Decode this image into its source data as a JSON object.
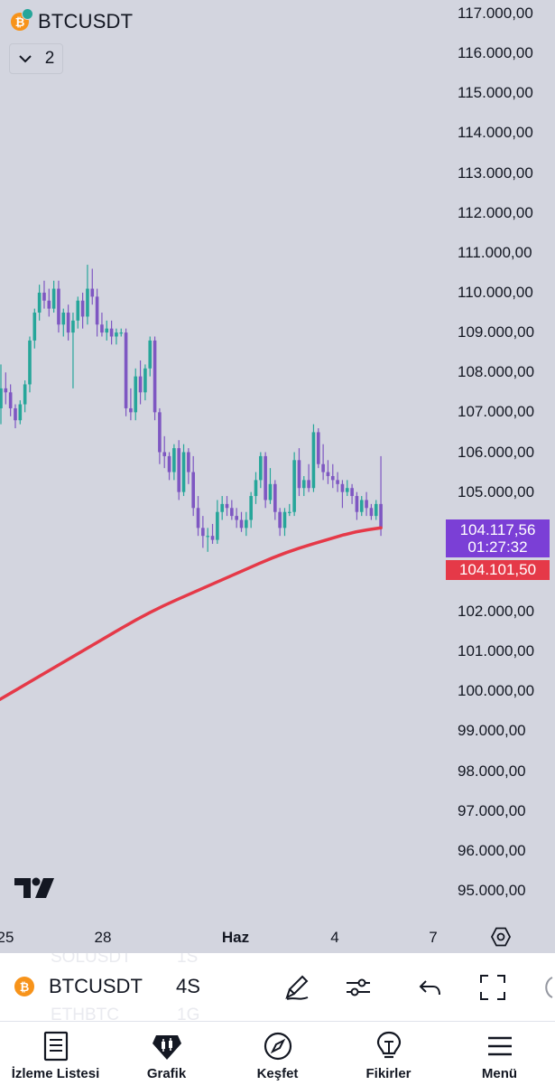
{
  "header": {
    "symbol": "BTCUSDT",
    "coin_glyph": "₿",
    "collapse_count": "2",
    "icon": "chevron-down-icon"
  },
  "colors": {
    "background": "#d3d5df",
    "up": "#26a69a",
    "down": "#7e57c2",
    "ma_line": "#e53948",
    "last_price_bg": "#7b3fd6"
  },
  "price_axis": {
    "ticks": [
      "117.000,00",
      "116.000,00",
      "115.000,00",
      "114.000,00",
      "113.000,00",
      "112.000,00",
      "111.000,00",
      "110.000,00",
      "109.000,00",
      "108.000,00",
      "107.000,00",
      "106.000,00",
      "105.000,00",
      "102.000,00",
      "101.000,00",
      "100.000,00",
      "99.000,00",
      "98.000,00",
      "97.000,00",
      "96.000,00",
      "95.000,00"
    ],
    "last_price": "104.117,56",
    "countdown": "01:27:32",
    "ma_value": "104.101,50"
  },
  "time_axis": {
    "labels": [
      "25",
      "28",
      "Haz",
      "4",
      "7"
    ]
  },
  "chart_data": {
    "type": "candlestick",
    "symbol": "BTCUSDT",
    "interval": "4S",
    "ylim": [
      94700,
      117300
    ],
    "candles": [
      {
        "o": 107100,
        "h": 108200,
        "l": 106700,
        "c": 107600
      },
      {
        "o": 107600,
        "h": 108000,
        "l": 107200,
        "c": 107500
      },
      {
        "o": 107500,
        "h": 107700,
        "l": 106900,
        "c": 107100
      },
      {
        "o": 107100,
        "h": 107200,
        "l": 106600,
        "c": 106800
      },
      {
        "o": 106800,
        "h": 107300,
        "l": 106700,
        "c": 107200
      },
      {
        "o": 107200,
        "h": 107800,
        "l": 107000,
        "c": 107700
      },
      {
        "o": 107700,
        "h": 108900,
        "l": 107500,
        "c": 108800
      },
      {
        "o": 108800,
        "h": 109600,
        "l": 108600,
        "c": 109500
      },
      {
        "o": 109500,
        "h": 110200,
        "l": 109300,
        "c": 110000
      },
      {
        "o": 110000,
        "h": 110300,
        "l": 109600,
        "c": 109800
      },
      {
        "o": 109800,
        "h": 110100,
        "l": 109400,
        "c": 109600
      },
      {
        "o": 109600,
        "h": 110300,
        "l": 109500,
        "c": 110100
      },
      {
        "o": 110100,
        "h": 110300,
        "l": 109000,
        "c": 109200
      },
      {
        "o": 109200,
        "h": 109600,
        "l": 108900,
        "c": 109500
      },
      {
        "o": 109500,
        "h": 109700,
        "l": 108800,
        "c": 109000
      },
      {
        "o": 109000,
        "h": 109500,
        "l": 107600,
        "c": 109300
      },
      {
        "o": 109300,
        "h": 109900,
        "l": 109100,
        "c": 109800
      },
      {
        "o": 109800,
        "h": 110000,
        "l": 109100,
        "c": 109400
      },
      {
        "o": 109400,
        "h": 110700,
        "l": 109200,
        "c": 110100
      },
      {
        "o": 110100,
        "h": 110600,
        "l": 109700,
        "c": 109900
      },
      {
        "o": 109900,
        "h": 110100,
        "l": 108900,
        "c": 109200
      },
      {
        "o": 109200,
        "h": 109500,
        "l": 108900,
        "c": 109000
      },
      {
        "o": 109000,
        "h": 109300,
        "l": 108800,
        "c": 109100
      },
      {
        "o": 109100,
        "h": 109300,
        "l": 108700,
        "c": 108900
      },
      {
        "o": 108900,
        "h": 109100,
        "l": 108700,
        "c": 109000
      },
      {
        "o": 109000,
        "h": 109100,
        "l": 108900,
        "c": 109000
      },
      {
        "o": 109000,
        "h": 109100,
        "l": 106900,
        "c": 107100
      },
      {
        "o": 107100,
        "h": 107600,
        "l": 106800,
        "c": 107000
      },
      {
        "o": 107000,
        "h": 108100,
        "l": 106800,
        "c": 107900
      },
      {
        "o": 107900,
        "h": 108300,
        "l": 107200,
        "c": 107500
      },
      {
        "o": 107500,
        "h": 108200,
        "l": 107300,
        "c": 108100
      },
      {
        "o": 108100,
        "h": 108900,
        "l": 107900,
        "c": 108800
      },
      {
        "o": 108800,
        "h": 108900,
        "l": 106800,
        "c": 107000
      },
      {
        "o": 107000,
        "h": 107100,
        "l": 105700,
        "c": 106000
      },
      {
        "o": 106000,
        "h": 106400,
        "l": 105600,
        "c": 105900
      },
      {
        "o": 105900,
        "h": 106000,
        "l": 105300,
        "c": 105500
      },
      {
        "o": 105500,
        "h": 106200,
        "l": 105300,
        "c": 106100
      },
      {
        "o": 106100,
        "h": 106300,
        "l": 104800,
        "c": 105000
      },
      {
        "o": 105000,
        "h": 106200,
        "l": 104900,
        "c": 106000
      },
      {
        "o": 106000,
        "h": 106100,
        "l": 105200,
        "c": 105500
      },
      {
        "o": 105500,
        "h": 105900,
        "l": 104400,
        "c": 104600
      },
      {
        "o": 104600,
        "h": 104900,
        "l": 103900,
        "c": 104100
      },
      {
        "o": 104100,
        "h": 104400,
        "l": 103600,
        "c": 103900
      },
      {
        "o": 103900,
        "h": 104100,
        "l": 103500,
        "c": 103900
      },
      {
        "o": 103900,
        "h": 104200,
        "l": 103700,
        "c": 103800
      },
      {
        "o": 103800,
        "h": 104800,
        "l": 103700,
        "c": 104500
      },
      {
        "o": 104500,
        "h": 104900,
        "l": 104300,
        "c": 104700
      },
      {
        "o": 104700,
        "h": 104900,
        "l": 104400,
        "c": 104600
      },
      {
        "o": 104600,
        "h": 104800,
        "l": 104300,
        "c": 104400
      },
      {
        "o": 104400,
        "h": 104600,
        "l": 104100,
        "c": 104300
      },
      {
        "o": 104300,
        "h": 104500,
        "l": 104000,
        "c": 104100
      },
      {
        "o": 104100,
        "h": 104500,
        "l": 103900,
        "c": 104300
      },
      {
        "o": 104300,
        "h": 105000,
        "l": 104100,
        "c": 104900
      },
      {
        "o": 104900,
        "h": 105500,
        "l": 104700,
        "c": 105300
      },
      {
        "o": 105300,
        "h": 106000,
        "l": 105100,
        "c": 105900
      },
      {
        "o": 105900,
        "h": 106000,
        "l": 104600,
        "c": 104800
      },
      {
        "o": 104800,
        "h": 105600,
        "l": 104700,
        "c": 105200
      },
      {
        "o": 105200,
        "h": 105300,
        "l": 104300,
        "c": 104500
      },
      {
        "o": 104500,
        "h": 104600,
        "l": 103900,
        "c": 104100
      },
      {
        "o": 104100,
        "h": 104600,
        "l": 103900,
        "c": 104500
      },
      {
        "o": 104500,
        "h": 104700,
        "l": 104400,
        "c": 104500
      },
      {
        "o": 104500,
        "h": 106000,
        "l": 104400,
        "c": 105800
      },
      {
        "o": 105800,
        "h": 106100,
        "l": 104900,
        "c": 105100
      },
      {
        "o": 105100,
        "h": 105400,
        "l": 104900,
        "c": 105300
      },
      {
        "o": 105300,
        "h": 105700,
        "l": 105000,
        "c": 105100
      },
      {
        "o": 105100,
        "h": 106700,
        "l": 105000,
        "c": 106500
      },
      {
        "o": 106500,
        "h": 106600,
        "l": 105600,
        "c": 105700
      },
      {
        "o": 105700,
        "h": 106200,
        "l": 105300,
        "c": 105500
      },
      {
        "o": 105500,
        "h": 105800,
        "l": 105200,
        "c": 105400
      },
      {
        "o": 105400,
        "h": 105700,
        "l": 105100,
        "c": 105300
      },
      {
        "o": 105300,
        "h": 105500,
        "l": 105000,
        "c": 105200
      },
      {
        "o": 105200,
        "h": 105300,
        "l": 104600,
        "c": 105000
      },
      {
        "o": 105000,
        "h": 105300,
        "l": 104900,
        "c": 105100
      },
      {
        "o": 105100,
        "h": 105200,
        "l": 104700,
        "c": 104900
      },
      {
        "o": 104900,
        "h": 105000,
        "l": 104300,
        "c": 104500
      },
      {
        "o": 104500,
        "h": 104900,
        "l": 104400,
        "c": 104800
      },
      {
        "o": 104800,
        "h": 105000,
        "l": 104400,
        "c": 104600
      },
      {
        "o": 104600,
        "h": 104700,
        "l": 104300,
        "c": 104400
      },
      {
        "o": 104400,
        "h": 104800,
        "l": 104300,
        "c": 104700
      },
      {
        "o": 104700,
        "h": 105900,
        "l": 103900,
        "c": 104117.56
      }
    ],
    "moving_average": [
      99800,
      100200,
      100600,
      101000,
      101400,
      101800,
      102150,
      102450,
      102750,
      103050,
      103350,
      103600,
      103800,
      104000,
      104101.5
    ]
  },
  "toolbar": {
    "ghost_rows": [
      {
        "symbol": "SOLUSDT",
        "interval": "1S"
      },
      {
        "symbol": "ETHBTC",
        "interval": "1G"
      }
    ],
    "symbol": "BTCUSDT",
    "interval": "4S",
    "icons": [
      "brush-icon",
      "indicators-icon",
      "undo-icon",
      "fullscreen-icon"
    ]
  },
  "nav": {
    "items": [
      {
        "label": "İzleme Listesi",
        "icon": "watchlist-icon"
      },
      {
        "label": "Grafik",
        "icon": "chart-icon"
      },
      {
        "label": "Keşfet",
        "icon": "compass-icon"
      },
      {
        "label": "Fikirler",
        "icon": "ideas-icon"
      },
      {
        "label": "Menü",
        "icon": "menu-icon"
      }
    ]
  }
}
